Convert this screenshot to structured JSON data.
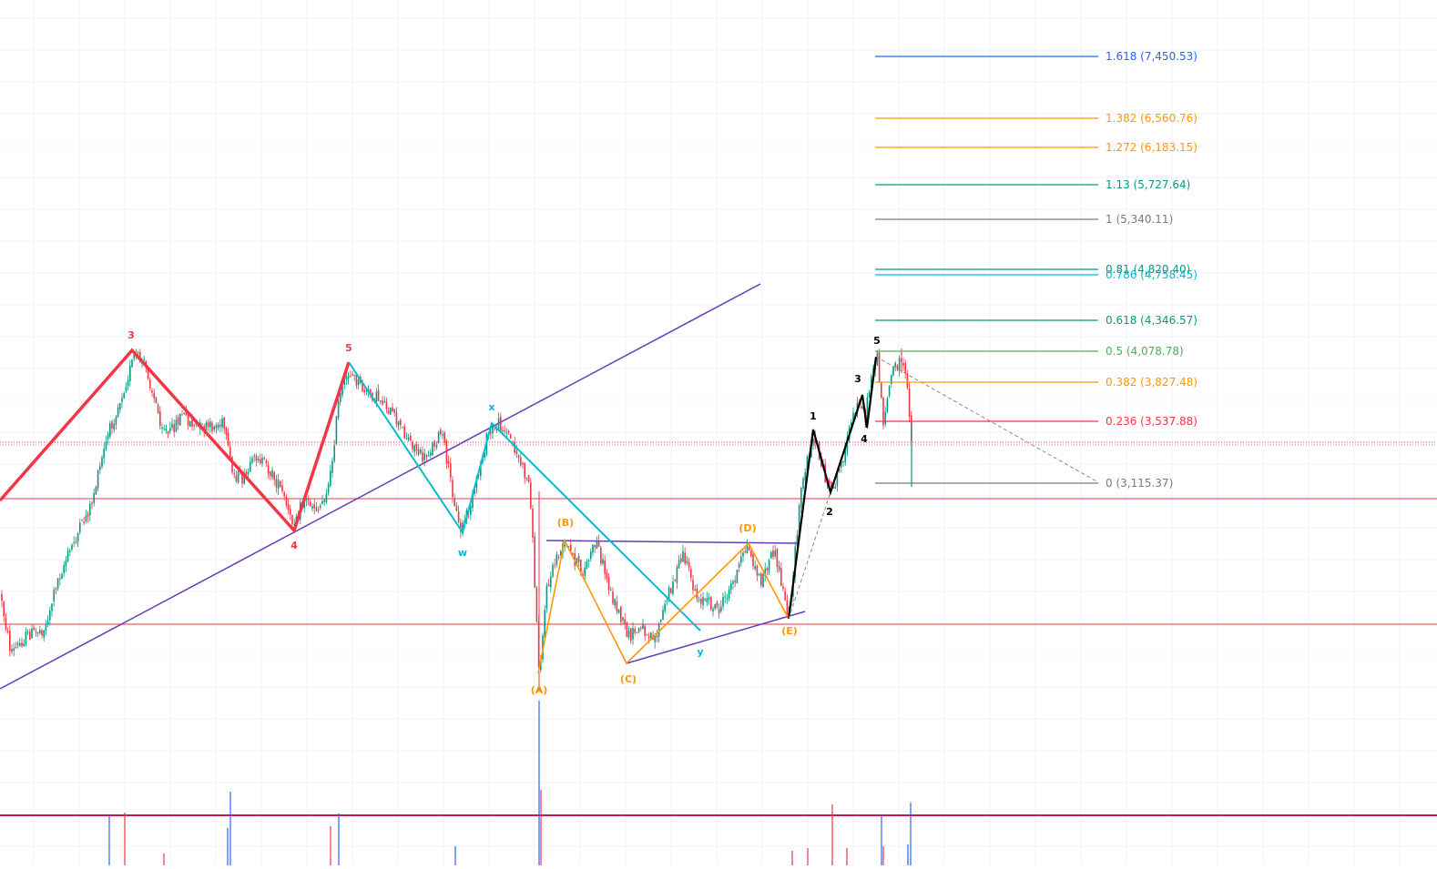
{
  "chart_data": {
    "type": "line",
    "title": "",
    "xlabel": "",
    "ylabel": "",
    "grid": true,
    "fib_levels": [
      {
        "ratio": "1.618",
        "price": "7,450.53",
        "label": "1.618 (7,450.53)",
        "color": "#2962ff"
      },
      {
        "ratio": "1.382",
        "price": "6,560.76",
        "label": "1.382 (6,560.76)",
        "color": "#ff9800"
      },
      {
        "ratio": "1.272",
        "price": "6,183.15",
        "label": "1.272 (6,183.15)",
        "color": "#ff9800"
      },
      {
        "ratio": "1.13",
        "price": "5,727.64",
        "label": "1.13 (5,727.64)",
        "color": "#089981"
      },
      {
        "ratio": "1",
        "price": "5,340.11",
        "label": "1 (5,340.11)",
        "color": "#787b86"
      },
      {
        "ratio": "0.81",
        "price": "4,820.40",
        "label": "0.81 (4,820.40)",
        "color": "#089981"
      },
      {
        "ratio": "0.786",
        "price": "4,758.45",
        "label": "0.786 (4,758.45)",
        "color": "#00bcd4"
      },
      {
        "ratio": "0.618",
        "price": "4,346.57",
        "label": "0.618 (4,346.57)",
        "color": "#089981"
      },
      {
        "ratio": "0.5",
        "price": "4,078.78",
        "label": "0.5 (4,078.78)",
        "color": "#4caf50"
      },
      {
        "ratio": "0.382",
        "price": "3,827.48",
        "label": "0.382 (3,827.48)",
        "color": "#ff9800"
      },
      {
        "ratio": "0.236",
        "price": "3,537.88",
        "label": "0.236 (3,537.88)",
        "color": "#f23645"
      },
      {
        "ratio": "0",
        "price": "3,115.37",
        "label": "0 (3,115.37)",
        "color": "#787b86"
      }
    ],
    "wave_labels": {
      "impulse_red": [
        "3",
        "4",
        "5"
      ],
      "wxy_cyan": [
        "w",
        "x",
        "y"
      ],
      "triangle_orange": [
        "(A)",
        "(B)",
        "(C)",
        "(D)",
        "(E)"
      ],
      "impulse_black": [
        "1",
        "2",
        "3",
        "4",
        "5"
      ]
    },
    "series": [
      {
        "color": "#f23645",
        "values": [
          4,
          3,
          4,
          5
        ]
      },
      {
        "color": "#00bcd4",
        "values": [
          5,
          "w",
          "x",
          "y"
        ]
      },
      {
        "color": "#ff9800",
        "values": [
          "(A)",
          "(B)",
          "(C)",
          "(D)",
          "(E)"
        ]
      },
      {
        "color": "#000000",
        "values": [
          "(E)",
          "1",
          "2",
          "3",
          "4",
          "5"
        ]
      }
    ],
    "colors": {
      "up": "#089981",
      "down": "#f23645",
      "trendline": "#673ab7",
      "horizontal": "#f23645",
      "volume_up": "#2962ff",
      "volume_down": "#f23645"
    }
  }
}
